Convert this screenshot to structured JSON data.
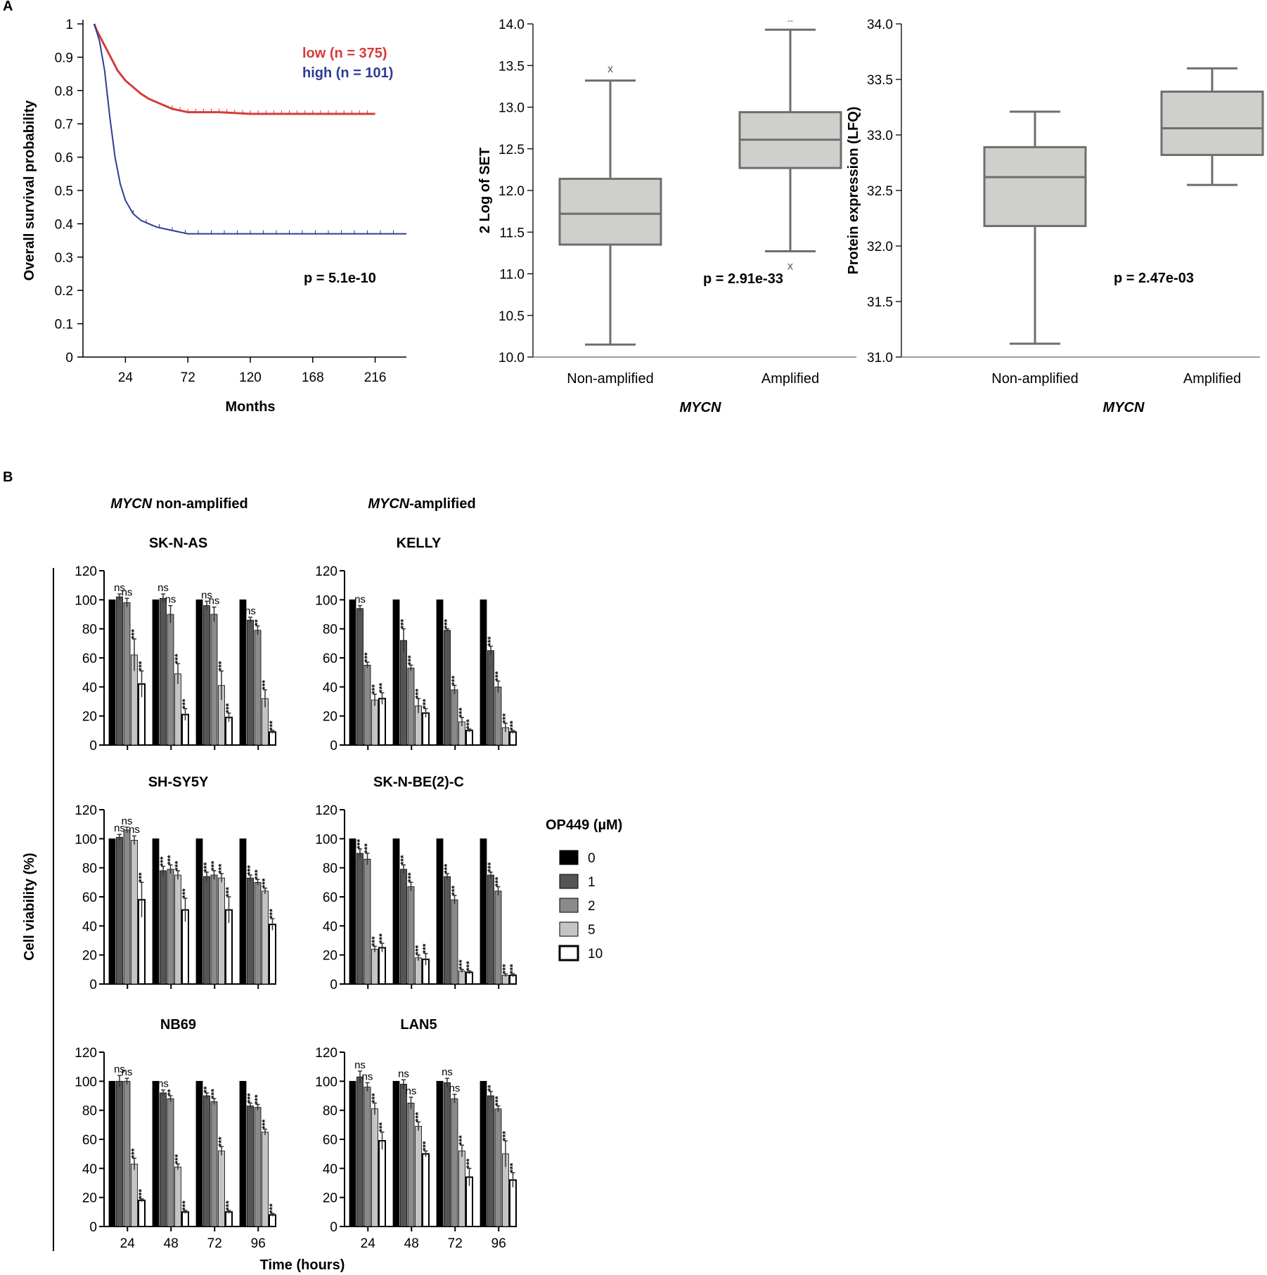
{
  "panel_labels": [
    "A",
    "B"
  ],
  "chart_data": [
    {
      "type": "line",
      "name": "km",
      "ylabel": "Overall survival probability",
      "xlabel": "Months",
      "xticks": [
        24,
        72,
        120,
        168,
        216
      ],
      "yticks": [
        "0",
        "0.1",
        "0.2",
        "0.3",
        "0.4",
        "0.5",
        "0.6",
        "0.7",
        "0.8",
        "0.9",
        "1"
      ],
      "xlim": [
        0,
        240
      ],
      "ylim": [
        0,
        1
      ],
      "series": [
        {
          "name": "low (n = 375)",
          "color": "#d63b3b",
          "x": [
            0,
            2,
            6,
            10,
            14,
            18,
            24,
            30,
            36,
            42,
            48,
            54,
            60,
            66,
            72,
            96,
            120,
            168,
            216
          ],
          "y": [
            1.0,
            0.98,
            0.95,
            0.92,
            0.89,
            0.86,
            0.83,
            0.81,
            0.79,
            0.775,
            0.765,
            0.755,
            0.745,
            0.74,
            0.735,
            0.735,
            0.73,
            0.73,
            0.73
          ]
        },
        {
          "name": "high (n = 101)",
          "color": "#2e3c93",
          "x": [
            0,
            4,
            8,
            12,
            16,
            20,
            24,
            30,
            36,
            42,
            48,
            54,
            60,
            66,
            72,
            96,
            120,
            168,
            216,
            240
          ],
          "y": [
            1.0,
            0.95,
            0.86,
            0.72,
            0.6,
            0.52,
            0.47,
            0.43,
            0.41,
            0.4,
            0.39,
            0.385,
            0.38,
            0.375,
            0.37,
            0.37,
            0.37,
            0.37,
            0.37,
            0.37
          ]
        }
      ],
      "annotation": "p = 5.1e-10"
    },
    {
      "type": "box",
      "name": "set",
      "ylabel": "2 Log of SET",
      "xlabel": "MYCN",
      "categories": [
        "Non-amplified",
        "Amplified"
      ],
      "yticks": [
        "10.0",
        "10.5",
        "11.0",
        "11.5",
        "12.0",
        "12.5",
        "13.0",
        "13.5",
        "14.0"
      ],
      "ylim": [
        10.0,
        14.0
      ],
      "boxes": [
        {
          "min": 10.15,
          "q1": 11.35,
          "median": 11.72,
          "q3": 12.14,
          "max": 13.32
        },
        {
          "min": 11.27,
          "q1": 12.27,
          "median": 12.61,
          "q3": 12.94,
          "max": 13.93
        }
      ],
      "outlier_marks": [
        "x",
        "x",
        "--"
      ],
      "annotation": "p = 2.91e-33"
    },
    {
      "type": "box",
      "name": "lfq",
      "ylabel": "Protein expression (LFQ)",
      "xlabel": "MYCN",
      "categories": [
        "Non-amplified",
        "Amplified"
      ],
      "yticks": [
        "31.0",
        "31.5",
        "32.0",
        "32.5",
        "33.0",
        "33.5",
        "34.0"
      ],
      "ylim": [
        31.0,
        34.0
      ],
      "boxes": [
        {
          "min": 31.12,
          "q1": 32.18,
          "median": 32.62,
          "q3": 32.89,
          "max": 33.21
        },
        {
          "min": 32.55,
          "q1": 32.82,
          "median": 33.06,
          "q3": 33.39,
          "max": 33.6
        }
      ],
      "annotation": "p = 2.47e-03"
    },
    {
      "type": "bar",
      "name": "viability",
      "ylabel": "Cell viability (%)",
      "xlabel": "Time (hours)",
      "categories": [
        "24",
        "48",
        "72",
        "96"
      ],
      "yticks": [
        "0",
        "20",
        "40",
        "60",
        "80",
        "100",
        "120"
      ],
      "ylim": [
        0,
        120
      ],
      "group_headers": [
        {
          "italic": "MYCN",
          "rest": " non-amplified"
        },
        {
          "italic": "MYCN",
          "rest": "-amplified"
        }
      ],
      "legend": {
        "title": "OP449 (µM)",
        "entries": [
          {
            "label": "0",
            "color": "#000000"
          },
          {
            "label": "1",
            "color": "#555555"
          },
          {
            "label": "2",
            "color": "#8a8a8a"
          },
          {
            "label": "5",
            "color": "#c4c4c4"
          },
          {
            "label": "10",
            "color": "#ffffff"
          }
        ]
      },
      "panels": [
        {
          "title": "SK-N-AS",
          "values": [
            [
              100,
              102,
              98,
              62,
              42
            ],
            [
              100,
              101,
              90,
              49,
              21
            ],
            [
              100,
              96,
              90,
              41,
              19
            ],
            [
              100,
              86,
              79,
              32,
              9
            ]
          ],
          "errors": [
            [
              0,
              2,
              3,
              11,
              9
            ],
            [
              0,
              3,
              6,
              7,
              4
            ],
            [
              0,
              3,
              5,
              10,
              3
            ],
            [
              0,
              2,
              3,
              6,
              1
            ]
          ],
          "labels": [
            [
              "",
              "ns",
              "ns",
              "***",
              "***"
            ],
            [
              "",
              "ns",
              "ns",
              "***",
              "***"
            ],
            [
              "",
              "ns",
              "ns",
              "***",
              "***"
            ],
            [
              "",
              "ns",
              "**",
              "***",
              "***"
            ]
          ]
        },
        {
          "title": "KELLY",
          "values": [
            [
              100,
              94,
              55,
              31,
              32
            ],
            [
              100,
              72,
              53,
              27,
              22
            ],
            [
              100,
              79,
              38,
              16,
              10
            ],
            [
              100,
              65,
              40,
              12,
              9
            ]
          ],
          "errors": [
            [
              0,
              2,
              2,
              4,
              4
            ],
            [
              0,
              8,
              2,
              5,
              3
            ],
            [
              0,
              1,
              3,
              3,
              1
            ],
            [
              0,
              3,
              4,
              3,
              1
            ]
          ],
          "labels": [
            [
              "",
              "ns",
              "***",
              "***",
              "***"
            ],
            [
              "",
              "***",
              "***",
              "***",
              "***"
            ],
            [
              "",
              "***",
              "***",
              "***",
              "***"
            ],
            [
              "",
              "***",
              "***",
              "***",
              "***"
            ]
          ]
        },
        {
          "title": "SH-SY5Y",
          "values": [
            [
              100,
              101,
              106,
              99,
              58
            ],
            [
              100,
              78,
              79,
              75,
              51
            ],
            [
              100,
              74,
              75,
              73,
              51
            ],
            [
              100,
              73,
              70,
              64,
              41
            ]
          ],
          "errors": [
            [
              0,
              2,
              2,
              3,
              12
            ],
            [
              0,
              3,
              3,
              3,
              8
            ],
            [
              0,
              3,
              3,
              3,
              9
            ],
            [
              0,
              2,
              2,
              2,
              4
            ]
          ],
          "labels": [
            [
              "",
              "ns",
              "ns",
              "ns",
              "***"
            ],
            [
              "",
              "***",
              "***",
              "***",
              "***"
            ],
            [
              "",
              "***",
              "***",
              "***",
              "***"
            ],
            [
              "",
              "***",
              "***",
              "***",
              "***"
            ]
          ]
        },
        {
          "title": "SK-N-BE(2)-C",
          "values": [
            [
              100,
              90,
              86,
              24,
              25
            ],
            [
              100,
              79,
              67,
              18,
              17
            ],
            [
              100,
              74,
              58,
              9,
              8
            ],
            [
              100,
              75,
              64,
              6,
              6
            ]
          ],
          "errors": [
            [
              0,
              3,
              4,
              2,
              3
            ],
            [
              0,
              3,
              3,
              2,
              4
            ],
            [
              0,
              2,
              3,
              1,
              1
            ],
            [
              0,
              2,
              3,
              1,
              1
            ]
          ],
          "labels": [
            [
              "",
              "***",
              "***",
              "***",
              "***"
            ],
            [
              "",
              "***",
              "***",
              "***",
              "***"
            ],
            [
              "",
              "***",
              "***",
              "***",
              "***"
            ],
            [
              "",
              "***",
              "***",
              "***",
              "***"
            ]
          ]
        },
        {
          "title": "NB69",
          "values": [
            [
              100,
              100,
              100,
              43,
              18
            ],
            [
              100,
              92,
              88,
              41,
              10
            ],
            [
              100,
              90,
              86,
              52,
              10
            ],
            [
              100,
              83,
              82,
              65,
              8
            ]
          ],
          "errors": [
            [
              0,
              4,
              2,
              4,
              1
            ],
            [
              0,
              2,
              2,
              2,
              1
            ],
            [
              0,
              2,
              2,
              3,
              1
            ],
            [
              0,
              2,
              2,
              2,
              1
            ]
          ],
          "labels": [
            [
              "",
              "ns",
              "ns",
              "***",
              "***"
            ],
            [
              "",
              "ns",
              "**",
              "***",
              "***"
            ],
            [
              "",
              "**",
              "***",
              "***",
              "***"
            ],
            [
              "",
              "***",
              "***",
              "***",
              "***"
            ]
          ]
        },
        {
          "title": "LAN5",
          "values": [
            [
              100,
              103,
              96,
              81,
              59
            ],
            [
              100,
              98,
              85,
              69,
              50
            ],
            [
              100,
              99,
              88,
              52,
              34
            ],
            [
              100,
              90,
              81,
              50,
              32
            ]
          ],
          "errors": [
            [
              0,
              4,
              3,
              4,
              6
            ],
            [
              0,
              3,
              4,
              3,
              2
            ],
            [
              0,
              3,
              3,
              4,
              6
            ],
            [
              0,
              3,
              2,
              9,
              5
            ]
          ],
          "labels": [
            [
              "",
              "ns",
              "ns",
              "***",
              "***"
            ],
            [
              "",
              "ns",
              "ns",
              "***",
              "***"
            ],
            [
              "",
              "ns",
              "ns",
              "***",
              "***"
            ],
            [
              "",
              "**",
              "***",
              "***",
              "***"
            ]
          ]
        }
      ]
    }
  ]
}
